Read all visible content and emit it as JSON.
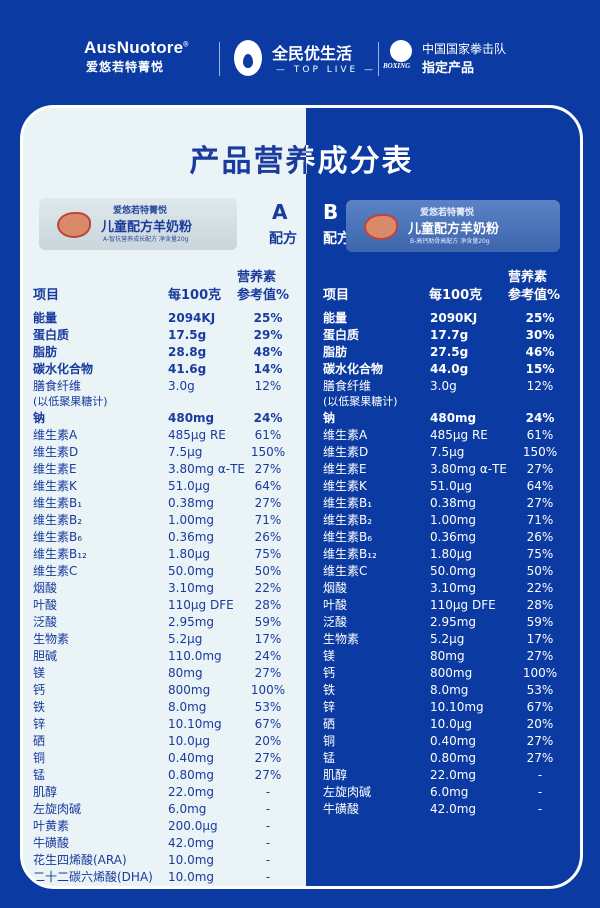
{
  "header": {
    "brand1": "AusNuotore",
    "brand1_reg": "®",
    "brand1_cn": "爱悠若特菁悦",
    "brand2": "全民优生活",
    "brand2_sub": "— TOP LIVE —",
    "brand3_logo": "BOXING",
    "brand3_line1": "中国国家拳击队",
    "brand3_line2": "指定产品"
  },
  "title": "产品营养成分表",
  "colors": {
    "background": "#0b3aa2",
    "panel_light": "#eaf4f6",
    "text_blue": "#1a3a9e"
  },
  "formula_a": {
    "letter": "A",
    "label": "配方",
    "pack": {
      "brand": "爱悠若特菁悦",
      "name": "儿童配方羊奶粉",
      "sub": "A-智抗营养成长配方  净含量20g"
    },
    "headers": {
      "item": "项目",
      "amount": "每100克",
      "nrv_line1": "营养素",
      "nrv_line2": "参考值%"
    },
    "rows": [
      {
        "item": "能量",
        "amount": "2094KJ",
        "nrv": "25%",
        "bold": true
      },
      {
        "item": "蛋白质",
        "amount": "17.5g",
        "nrv": "29%",
        "bold": true
      },
      {
        "item": "脂肪",
        "amount": "28.8g",
        "nrv": "48%",
        "bold": true
      },
      {
        "item": "碳水化合物",
        "amount": "41.6g",
        "nrv": "14%",
        "bold": true
      },
      {
        "item": "膳食纤维",
        "amount": "3.0g",
        "nrv": "12%",
        "note": "(以低聚果糖计)"
      },
      {
        "item": "钠",
        "amount": "480mg",
        "nrv": "24%",
        "bold": true
      },
      {
        "item": "维生素A",
        "amount": "485μg RE",
        "nrv": "61%"
      },
      {
        "item": "维生素D",
        "amount": "7.5μg",
        "nrv": "150%"
      },
      {
        "item": "维生素E",
        "amount": "3.80mg α-TE",
        "nrv": "27%"
      },
      {
        "item": "维生素K",
        "amount": "51.0μg",
        "nrv": "64%"
      },
      {
        "item": "维生素B₁",
        "amount": "0.38mg",
        "nrv": "27%"
      },
      {
        "item": "维生素B₂",
        "amount": "1.00mg",
        "nrv": "71%"
      },
      {
        "item": "维生素B₆",
        "amount": "0.36mg",
        "nrv": "26%"
      },
      {
        "item": "维生素B₁₂",
        "amount": "1.80μg",
        "nrv": "75%"
      },
      {
        "item": "维生素C",
        "amount": "50.0mg",
        "nrv": "50%"
      },
      {
        "item": "烟酸",
        "amount": "3.10mg",
        "nrv": "22%"
      },
      {
        "item": "叶酸",
        "amount": "110μg DFE",
        "nrv": "28%"
      },
      {
        "item": "泛酸",
        "amount": "2.95mg",
        "nrv": "59%"
      },
      {
        "item": "生物素",
        "amount": "5.2μg",
        "nrv": "17%"
      },
      {
        "item": "胆碱",
        "amount": "110.0mg",
        "nrv": "24%"
      },
      {
        "item": "镁",
        "amount": "80mg",
        "nrv": "27%"
      },
      {
        "item": "钙",
        "amount": "800mg",
        "nrv": "100%"
      },
      {
        "item": "铁",
        "amount": "8.0mg",
        "nrv": "53%"
      },
      {
        "item": "锌",
        "amount": "10.10mg",
        "nrv": "67%"
      },
      {
        "item": "硒",
        "amount": "10.0μg",
        "nrv": "20%"
      },
      {
        "item": "铜",
        "amount": "0.40mg",
        "nrv": "27%"
      },
      {
        "item": "锰",
        "amount": "0.80mg",
        "nrv": "27%"
      },
      {
        "item": "肌醇",
        "amount": "22.0mg",
        "nrv": "-"
      },
      {
        "item": "左旋肉碱",
        "amount": "6.0mg",
        "nrv": "-"
      },
      {
        "item": "叶黄素",
        "amount": "200.0μg",
        "nrv": "-"
      },
      {
        "item": "牛磺酸",
        "amount": "42.0mg",
        "nrv": "-"
      },
      {
        "item": "花生四烯酸(ARA)",
        "amount": "10.0mg",
        "nrv": "-"
      },
      {
        "item": "二十二碳六烯酸(DHA)",
        "amount": "10.0mg",
        "nrv": "-"
      }
    ]
  },
  "formula_b": {
    "letter": "B",
    "label": "配方",
    "pack": {
      "brand": "爱悠若特菁悦",
      "name": "儿童配方羊奶粉",
      "sub": "B-高钙助骨高配方  净含量20g"
    },
    "headers": {
      "item": "项目",
      "amount": "每100克",
      "nrv_line1": "营养素",
      "nrv_line2": "参考值%"
    },
    "rows": [
      {
        "item": "能量",
        "amount": "2090KJ",
        "nrv": "25%",
        "bold": true
      },
      {
        "item": "蛋白质",
        "amount": "17.7g",
        "nrv": "30%",
        "bold": true
      },
      {
        "item": "脂肪",
        "amount": "27.5g",
        "nrv": "46%",
        "bold": true
      },
      {
        "item": "碳水化合物",
        "amount": "44.0g",
        "nrv": "15%",
        "bold": true
      },
      {
        "item": "膳食纤维",
        "amount": "3.0g",
        "nrv": "12%",
        "note": "(以低聚果糖计)"
      },
      {
        "item": "钠",
        "amount": "480mg",
        "nrv": "24%",
        "bold": true
      },
      {
        "item": "维生素A",
        "amount": "485μg RE",
        "nrv": "61%"
      },
      {
        "item": "维生素D",
        "amount": "7.5μg",
        "nrv": "150%"
      },
      {
        "item": "维生素E",
        "amount": "3.80mg α-TE",
        "nrv": "27%"
      },
      {
        "item": "维生素K",
        "amount": "51.0μg",
        "nrv": "64%"
      },
      {
        "item": "维生素B₁",
        "amount": "0.38mg",
        "nrv": "27%"
      },
      {
        "item": "维生素B₂",
        "amount": "1.00mg",
        "nrv": "71%"
      },
      {
        "item": "维生素B₆",
        "amount": "0.36mg",
        "nrv": "26%"
      },
      {
        "item": "维生素B₁₂",
        "amount": "1.80μg",
        "nrv": "75%"
      },
      {
        "item": "维生素C",
        "amount": "50.0mg",
        "nrv": "50%"
      },
      {
        "item": "烟酸",
        "amount": "3.10mg",
        "nrv": "22%"
      },
      {
        "item": "叶酸",
        "amount": "110μg DFE",
        "nrv": "28%"
      },
      {
        "item": "泛酸",
        "amount": "2.95mg",
        "nrv": "59%"
      },
      {
        "item": "生物素",
        "amount": "5.2μg",
        "nrv": "17%"
      },
      {
        "item": "镁",
        "amount": "80mg",
        "nrv": "27%"
      },
      {
        "item": "钙",
        "amount": "800mg",
        "nrv": "100%"
      },
      {
        "item": "铁",
        "amount": "8.0mg",
        "nrv": "53%"
      },
      {
        "item": "锌",
        "amount": "10.10mg",
        "nrv": "67%"
      },
      {
        "item": "硒",
        "amount": "10.0μg",
        "nrv": "20%"
      },
      {
        "item": "铜",
        "amount": "0.40mg",
        "nrv": "27%"
      },
      {
        "item": "锰",
        "amount": "0.80mg",
        "nrv": "27%"
      },
      {
        "item": "肌醇",
        "amount": "22.0mg",
        "nrv": "-"
      },
      {
        "item": "左旋肉碱",
        "amount": "6.0mg",
        "nrv": "-"
      },
      {
        "item": "牛磺酸",
        "amount": "42.0mg",
        "nrv": "-"
      }
    ]
  }
}
